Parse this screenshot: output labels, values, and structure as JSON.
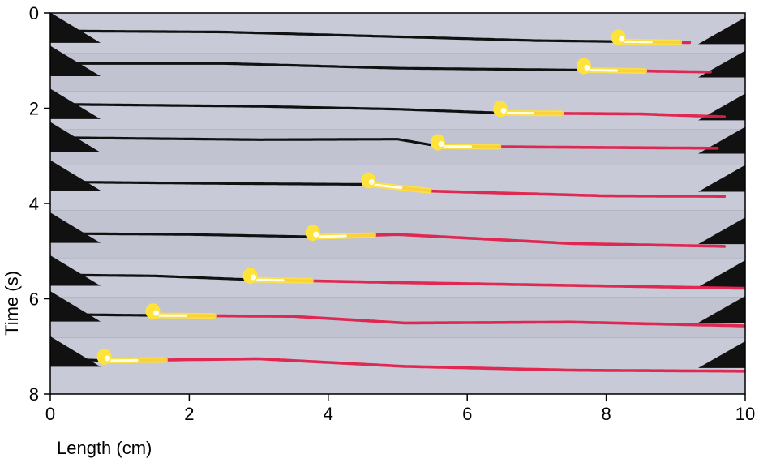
{
  "chart_data": {
    "type": "line",
    "xlabel": "Length (cm)",
    "ylabel": "Time (s)",
    "xlim": [
      0,
      10
    ],
    "ylim": [
      0,
      8
    ],
    "y_inverted": true,
    "x_ticks": [
      0,
      2,
      4,
      6,
      8,
      10
    ],
    "y_ticks": [
      0,
      2,
      4,
      6,
      8
    ],
    "grid": false,
    "background_image": "stacked video frames of a burning fuse strip",
    "colors": {
      "background": "#c4c6d4",
      "fuse_unburnt": "#111111",
      "fuse_burnt": "#e0204a",
      "flame": "#ffe23a",
      "flame_core": "#ffffee",
      "clamp": "#111111"
    },
    "frames": [
      {
        "t": 0.5,
        "front_x": 8.2,
        "fuse": [
          [
            0.3,
            -0.12
          ],
          [
            2.5,
            -0.1
          ],
          [
            5.0,
            0.0
          ],
          [
            7.0,
            0.08
          ],
          [
            8.2,
            0.1
          ],
          [
            9.2,
            0.12
          ]
        ]
      },
      {
        "t": 1.2,
        "front_x": 7.7,
        "fuse": [
          [
            0.2,
            -0.14
          ],
          [
            2.5,
            -0.14
          ],
          [
            5.0,
            -0.04
          ],
          [
            7.7,
            0.0
          ],
          [
            9.5,
            0.04
          ]
        ]
      },
      {
        "t": 2.1,
        "front_x": 6.5,
        "fuse": [
          [
            0.3,
            -0.18
          ],
          [
            3.0,
            -0.14
          ],
          [
            5.0,
            -0.08
          ],
          [
            6.5,
            0.0
          ],
          [
            8.5,
            0.02
          ],
          [
            9.7,
            0.08
          ]
        ]
      },
      {
        "t": 2.8,
        "front_x": 5.6,
        "fuse": [
          [
            0.3,
            -0.18
          ],
          [
            3.0,
            -0.14
          ],
          [
            5.0,
            -0.15
          ],
          [
            5.6,
            0.0
          ],
          [
            7.5,
            0.02
          ],
          [
            9.6,
            0.04
          ]
        ]
      },
      {
        "t": 3.6,
        "front_x": 4.6,
        "fuse": [
          [
            0.3,
            -0.05
          ],
          [
            2.5,
            -0.02
          ],
          [
            4.6,
            0.0
          ],
          [
            5.5,
            0.14
          ],
          [
            8.0,
            0.24
          ],
          [
            9.7,
            0.25
          ]
        ]
      },
      {
        "t": 4.7,
        "front_x": 3.8,
        "fuse": [
          [
            0.1,
            -0.07
          ],
          [
            2.0,
            -0.05
          ],
          [
            3.8,
            0.0
          ],
          [
            5.0,
            -0.05
          ],
          [
            7.5,
            0.14
          ],
          [
            9.7,
            0.2
          ]
        ]
      },
      {
        "t": 5.6,
        "front_x": 2.9,
        "fuse": [
          [
            0.1,
            -0.1
          ],
          [
            1.5,
            -0.08
          ],
          [
            2.9,
            0.0
          ],
          [
            5.0,
            0.06
          ],
          [
            7.5,
            0.12
          ],
          [
            10.0,
            0.18
          ]
        ]
      },
      {
        "t": 6.35,
        "front_x": 1.5,
        "fuse": [
          [
            0.2,
            -0.02
          ],
          [
            1.5,
            0.0
          ],
          [
            3.5,
            0.02
          ],
          [
            5.1,
            0.16
          ],
          [
            7.5,
            0.14
          ],
          [
            10.0,
            0.22
          ]
        ]
      },
      {
        "t": 7.3,
        "front_x": 0.8,
        "fuse": [
          [
            0.0,
            -0.05
          ],
          [
            0.8,
            0.0
          ],
          [
            3.0,
            -0.04
          ],
          [
            5.1,
            0.12
          ],
          [
            7.5,
            0.2
          ],
          [
            10.0,
            0.22
          ]
        ]
      }
    ]
  }
}
